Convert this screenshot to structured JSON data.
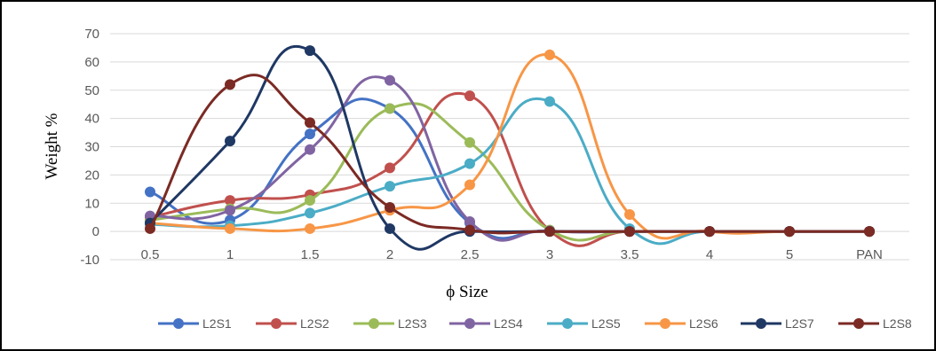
{
  "chart_data": {
    "type": "line",
    "smooth": true,
    "categories": [
      "0.5",
      "1",
      "1.5",
      "2",
      "2.5",
      "3",
      "3.5",
      "4",
      "5",
      "PAN"
    ],
    "xlabel": "ϕ Size",
    "ylabel": "Weight %",
    "ylim": [
      -10,
      70
    ],
    "yticks": [
      -10,
      0,
      10,
      20,
      30,
      40,
      50,
      60,
      70
    ],
    "grid": true,
    "legend_position": "bottom",
    "series": [
      {
        "name": "L2S1",
        "color": "#4472C4",
        "values": [
          14,
          4,
          34.5,
          43.5,
          3,
          0.2,
          0,
          0,
          0,
          0
        ]
      },
      {
        "name": "L2S2",
        "color": "#C0504D",
        "values": [
          5,
          11,
          13,
          22.5,
          48,
          0.3,
          0,
          0,
          0,
          0
        ]
      },
      {
        "name": "L2S3",
        "color": "#9BBB59",
        "values": [
          4,
          8,
          11,
          43.5,
          31.5,
          0.5,
          0,
          0,
          0,
          0
        ]
      },
      {
        "name": "L2S4",
        "color": "#8064A2",
        "values": [
          5.5,
          7.5,
          29,
          53.5,
          3.5,
          0.2,
          0,
          0,
          0,
          0
        ]
      },
      {
        "name": "L2S5",
        "color": "#4BACC6",
        "values": [
          2.5,
          2,
          6.5,
          16,
          24,
          46,
          1,
          0,
          0,
          0
        ]
      },
      {
        "name": "L2S6",
        "color": "#F79646",
        "values": [
          3,
          1,
          1,
          7.5,
          16.5,
          62.5,
          6,
          0,
          0,
          0
        ]
      },
      {
        "name": "L2S7",
        "color": "#1F3864",
        "values": [
          3,
          32,
          64,
          1,
          0,
          0,
          0,
          0,
          0,
          0
        ]
      },
      {
        "name": "L2S8",
        "color": "#7B2A24",
        "values": [
          1,
          52,
          38.5,
          8.5,
          0.5,
          0,
          0,
          0,
          0,
          0
        ]
      }
    ]
  }
}
